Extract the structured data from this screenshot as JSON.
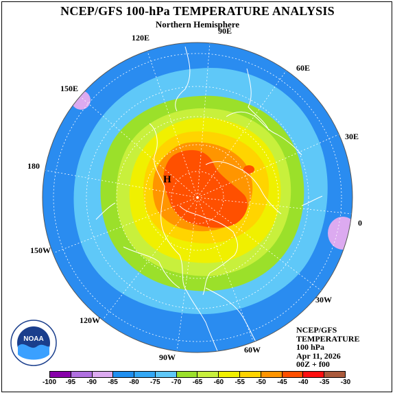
{
  "title": "NCEP/GFS 100-hPa TEMPERATURE ANALYSIS",
  "subtitle": "Northern Hemisphere",
  "longitudes": {
    "lon_90e": "90E",
    "lon_60e": "60E",
    "lon_30e": "30E",
    "lon_0": "0",
    "lon_30w": "30W",
    "lon_60w": "60W",
    "lon_90w": "90W",
    "lon_120w": "120W",
    "lon_150w": "150W",
    "lon_180": "180",
    "lon_150e": "150E",
    "lon_120e": "120E"
  },
  "high_label": "H",
  "info": {
    "line1": "NCEP/GFS",
    "line2": "TEMPERATURE",
    "line3": "100 hPa",
    "line4": "Apr 11, 2026",
    "line5": "00Z + f00"
  },
  "logo_text": "NOAA",
  "legend": {
    "ticks": [
      "-100",
      "-95",
      "-90",
      "-85",
      "-80",
      "-75",
      "-70",
      "-65",
      "-60",
      "-55",
      "-50",
      "-45",
      "-40",
      "-35",
      "-30"
    ],
    "colors": [
      "#8800aa",
      "#b070e0",
      "#dcaaf0",
      "#1f8ff0",
      "#34a8f5",
      "#5fc8f8",
      "#9be02a",
      "#c8f03c",
      "#f0f000",
      "#ffd400",
      "#ff9500",
      "#ff5000",
      "#ff1010",
      "#aa5a3c"
    ]
  },
  "colors": {
    "ocean_outer": "#2a8cf0",
    "c_minus75": "#5fc8f8",
    "c_minus70": "#9be02a",
    "c_minus65": "#c8f03c",
    "c_minus60": "#f0f000",
    "c_minus55": "#ffd400",
    "c_minus50": "#ff9500",
    "c_minus45": "#ff5000",
    "c_minus85": "#dcaaf0"
  }
}
